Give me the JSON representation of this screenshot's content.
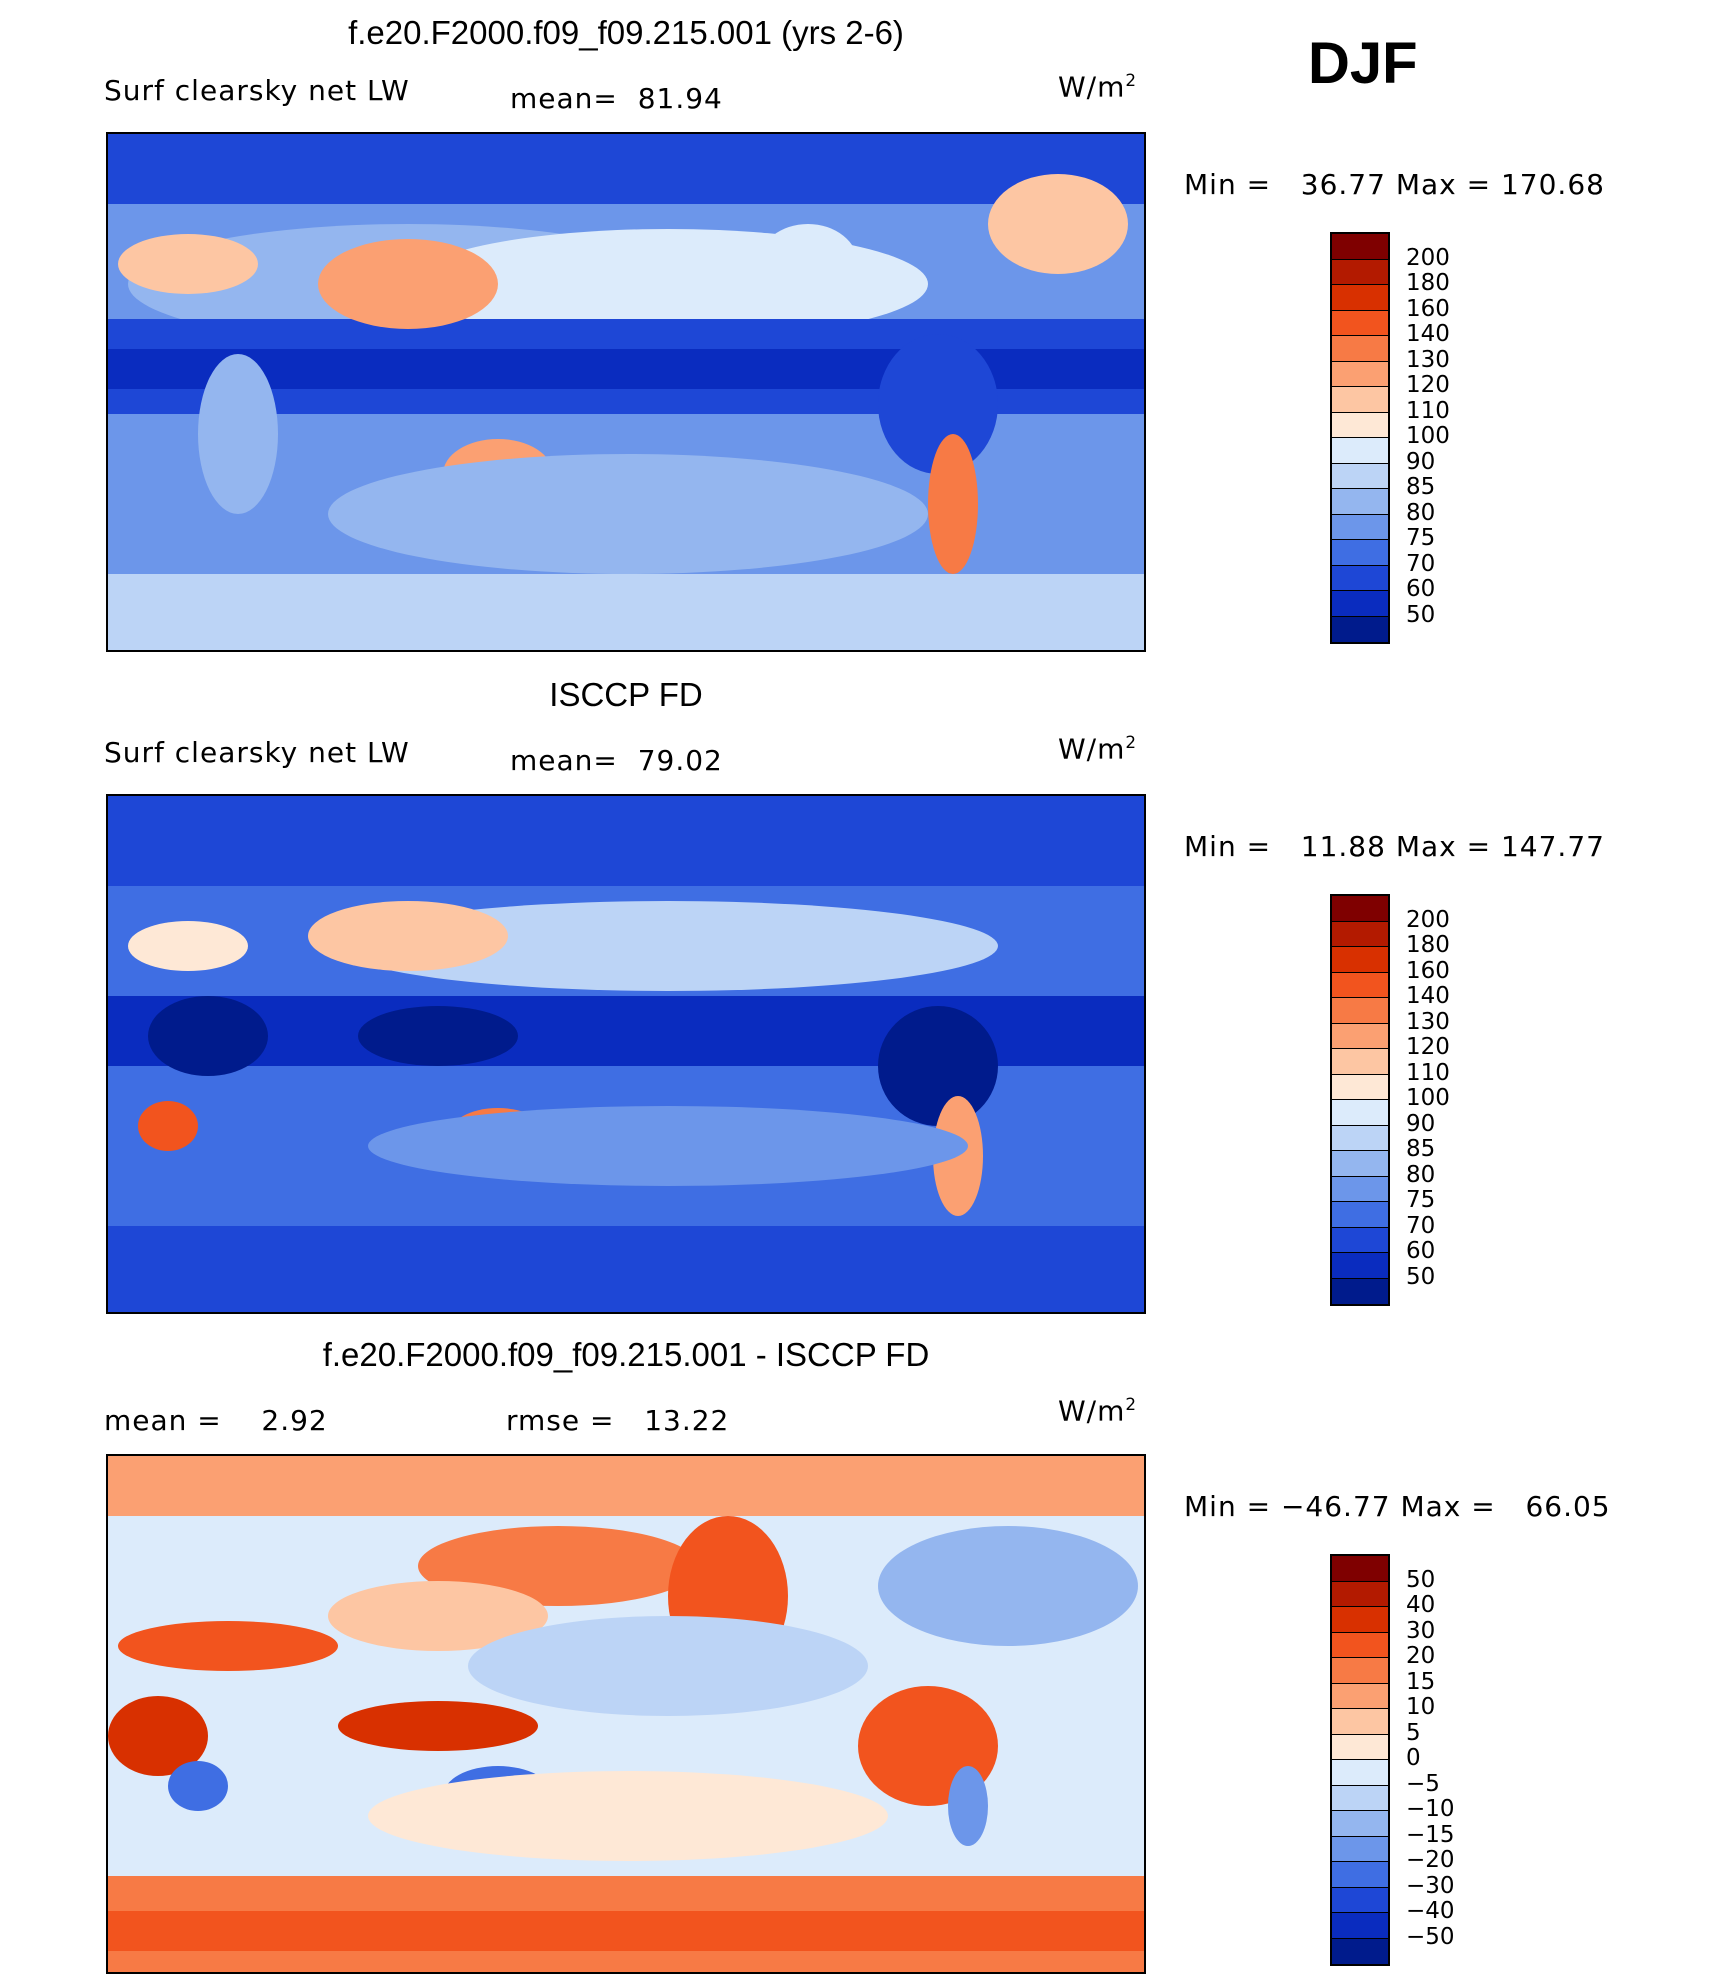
{
  "season": "DJF",
  "units": "W/m²",
  "panels": [
    {
      "id": "model",
      "title": "f.e20.F2000.f09_f09.215.001 (yrs 2-6)",
      "variable": "Surf clearsky net LW",
      "stat_label": "mean=",
      "stat_value": "81.94",
      "min_label": "Min =",
      "min_value": "36.77",
      "max_label": "Max =",
      "max_value": "170.68",
      "colorbar": {
        "labels": [
          "200",
          "180",
          "160",
          "140",
          "130",
          "120",
          "110",
          "100",
          "90",
          "85",
          "80",
          "75",
          "70",
          "60",
          "50"
        ],
        "colors": [
          "#7f0000",
          "#b31a00",
          "#d83000",
          "#f2541e",
          "#f77a45",
          "#fba072",
          "#fdc6a3",
          "#fee8d6",
          "#dcebfb",
          "#bcd4f6",
          "#94b6ef",
          "#6c96ea",
          "#3f6ee3",
          "#1e47d6",
          "#0a2cbf",
          "#001b8c"
        ]
      }
    },
    {
      "id": "obs",
      "title": "ISCCP FD",
      "variable": "Surf clearsky net LW",
      "stat_label": "mean=",
      "stat_value": "79.02",
      "min_label": "Min =",
      "min_value": "11.88",
      "max_label": "Max =",
      "max_value": "147.77",
      "colorbar": {
        "labels": [
          "200",
          "180",
          "160",
          "140",
          "130",
          "120",
          "110",
          "100",
          "90",
          "85",
          "80",
          "75",
          "70",
          "60",
          "50"
        ],
        "colors": [
          "#7f0000",
          "#b31a00",
          "#d83000",
          "#f2541e",
          "#f77a45",
          "#fba072",
          "#fdc6a3",
          "#fee8d6",
          "#dcebfb",
          "#bcd4f6",
          "#94b6ef",
          "#6c96ea",
          "#3f6ee3",
          "#1e47d6",
          "#0a2cbf",
          "#001b8c"
        ]
      }
    },
    {
      "id": "diff",
      "title": "f.e20.F2000.f09_f09.215.001 - ISCCP FD",
      "stat_label": "mean =",
      "stat_value": "2.92",
      "rmse_label": "rmse =",
      "rmse_value": "13.22",
      "min_label": "Min =",
      "min_value": "−46.77",
      "max_label": "Max =",
      "max_value": "66.05",
      "colorbar": {
        "labels": [
          "50",
          "40",
          "30",
          "20",
          "15",
          "10",
          "5",
          "0",
          "−5",
          "−10",
          "−15",
          "−20",
          "−30",
          "−40",
          "−50"
        ],
        "colors": [
          "#7f0000",
          "#b31a00",
          "#d83000",
          "#f2541e",
          "#f77a45",
          "#fba072",
          "#fdc6a3",
          "#fee8d6",
          "#dcebfb",
          "#bcd4f6",
          "#94b6ef",
          "#6c96ea",
          "#3f6ee3",
          "#1e47d6",
          "#0a2cbf",
          "#001b8c"
        ]
      }
    }
  ]
}
